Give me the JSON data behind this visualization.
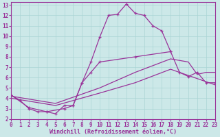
{
  "bg": "#cce8e8",
  "grid_color": "#aad4d4",
  "lc": "#993399",
  "xlabel": "Windchill (Refroidissement éolien,°C)",
  "xlim": [
    0,
    23
  ],
  "ylim": [
    2,
    13.3
  ],
  "yticks": [
    2,
    3,
    4,
    5,
    6,
    7,
    8,
    9,
    10,
    11,
    12,
    13
  ],
  "xticks": [
    0,
    1,
    2,
    3,
    4,
    5,
    6,
    7,
    8,
    9,
    10,
    11,
    12,
    13,
    14,
    15,
    16,
    17,
    18,
    19,
    20,
    21,
    22,
    23
  ],
  "c1_x": [
    0,
    1,
    2,
    3,
    4,
    5,
    6,
    7,
    8,
    9,
    10,
    11,
    12,
    13,
    14,
    15,
    16,
    17,
    18
  ],
  "c1_y": [
    4.3,
    3.8,
    3.0,
    2.7,
    2.7,
    2.5,
    3.3,
    3.3,
    5.5,
    7.5,
    9.9,
    12.0,
    12.1,
    13.1,
    12.2,
    12.0,
    11.0,
    10.5,
    8.5
  ],
  "c2_x": [
    0,
    2,
    4,
    6,
    7,
    8,
    9,
    10,
    14,
    18,
    19,
    20,
    21,
    22,
    23
  ],
  "c2_y": [
    4.3,
    3.1,
    2.7,
    3.0,
    3.3,
    5.5,
    6.5,
    7.5,
    8.0,
    8.5,
    6.5,
    6.1,
    6.5,
    5.5,
    5.5
  ],
  "c3_x": [
    0,
    5,
    10,
    14,
    18,
    20,
    21,
    22,
    23
  ],
  "c3_y": [
    4.2,
    3.5,
    5.0,
    6.5,
    7.8,
    7.5,
    6.3,
    6.5,
    6.5
  ],
  "c4_x": [
    0,
    5,
    10,
    14,
    18,
    23
  ],
  "c4_y": [
    4.0,
    3.3,
    4.5,
    5.5,
    6.8,
    5.3
  ]
}
